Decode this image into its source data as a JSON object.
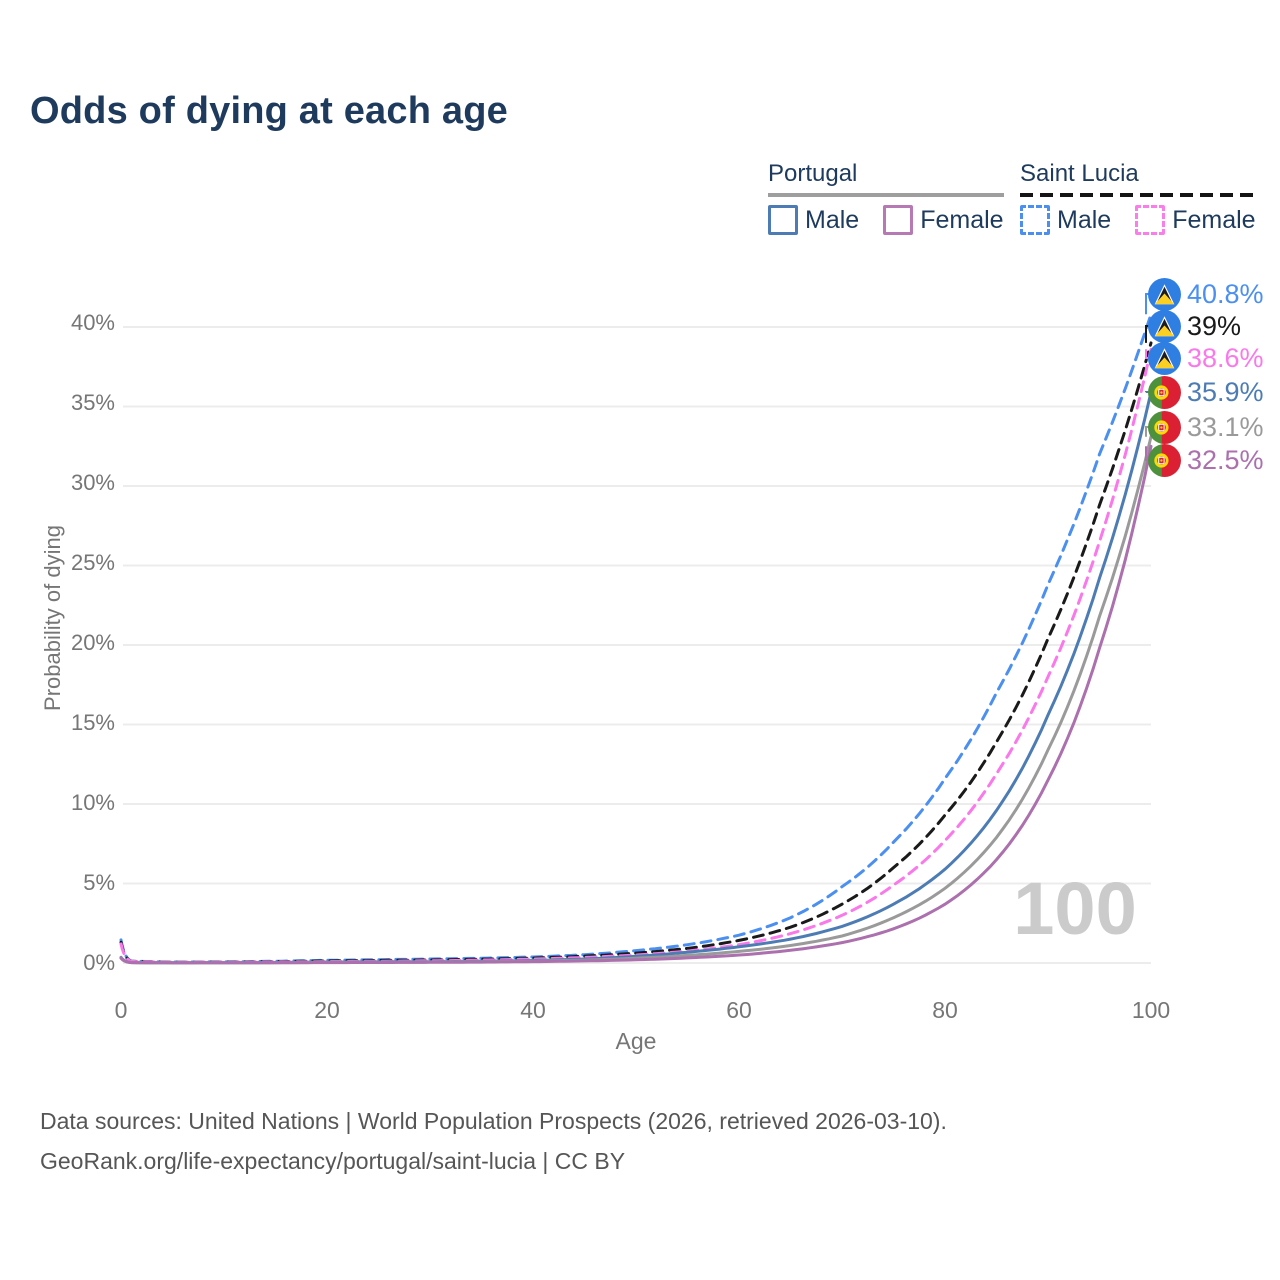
{
  "title": "Odds of dying at each age",
  "legend": {
    "portugal": {
      "label": "Portugal",
      "male": "Male",
      "female": "Female"
    },
    "saint_lucia": {
      "label": "Saint Lucia",
      "male": "Male",
      "female": "Female"
    }
  },
  "chart_data": {
    "type": "line",
    "title": "Odds of dying at each age",
    "xlabel": "Age",
    "ylabel": "Probability of dying",
    "x_ticks": [
      "0",
      "20",
      "40",
      "60",
      "80",
      "100"
    ],
    "x_tick_values": [
      0,
      20,
      40,
      60,
      80,
      100
    ],
    "y_ticks": [
      "0%",
      "5%",
      "10%",
      "15%",
      "20%",
      "25%",
      "30%",
      "35%",
      "40%"
    ],
    "y_tick_values_pct": [
      0,
      5,
      10,
      15,
      20,
      25,
      30,
      35,
      40
    ],
    "xlim": [
      0,
      100
    ],
    "ylim_pct": [
      0,
      42
    ],
    "grid": "horizontal",
    "legend_position": "top-right",
    "watermark": "100",
    "series": [
      {
        "name": "Saint Lucia Male",
        "country": "Saint Lucia",
        "sex": "Male",
        "color": "#4b8ff0",
        "dash": "dashed",
        "end_label": "40.8%",
        "flag": "saint-lucia",
        "points": [
          [
            0,
            1.45
          ],
          [
            1,
            0.12
          ],
          [
            5,
            0.06
          ],
          [
            10,
            0.07
          ],
          [
            15,
            0.11
          ],
          [
            20,
            0.17
          ],
          [
            25,
            0.21
          ],
          [
            30,
            0.25
          ],
          [
            35,
            0.3
          ],
          [
            40,
            0.38
          ],
          [
            45,
            0.52
          ],
          [
            50,
            0.78
          ],
          [
            55,
            1.15
          ],
          [
            60,
            1.75
          ],
          [
            65,
            2.85
          ],
          [
            70,
            4.8
          ],
          [
            75,
            7.6
          ],
          [
            80,
            11.6
          ],
          [
            85,
            17.0
          ],
          [
            90,
            23.8
          ],
          [
            95,
            32.0
          ],
          [
            100,
            40.8
          ]
        ]
      },
      {
        "name": "Saint Lucia Total",
        "country": "Saint Lucia",
        "sex": "Both",
        "color": "#1a1a1a",
        "dash": "dashed",
        "end_label": "39%",
        "flag": "saint-lucia",
        "points": [
          [
            0,
            1.3
          ],
          [
            1,
            0.11
          ],
          [
            5,
            0.05
          ],
          [
            10,
            0.055
          ],
          [
            15,
            0.085
          ],
          [
            20,
            0.13
          ],
          [
            25,
            0.16
          ],
          [
            30,
            0.19
          ],
          [
            35,
            0.24
          ],
          [
            40,
            0.31
          ],
          [
            45,
            0.43
          ],
          [
            50,
            0.62
          ],
          [
            55,
            0.92
          ],
          [
            60,
            1.42
          ],
          [
            65,
            2.25
          ],
          [
            70,
            3.7
          ],
          [
            75,
            6.0
          ],
          [
            80,
            9.3
          ],
          [
            85,
            13.9
          ],
          [
            90,
            20.4
          ],
          [
            95,
            28.8
          ],
          [
            100,
            39.0
          ]
        ]
      },
      {
        "name": "Saint Lucia Female",
        "country": "Saint Lucia",
        "sex": "Female",
        "color": "#fa78ea",
        "dash": "dashed",
        "end_label": "38.6%",
        "flag": "saint-lucia",
        "points": [
          [
            0,
            1.2
          ],
          [
            1,
            0.1
          ],
          [
            5,
            0.045
          ],
          [
            10,
            0.05
          ],
          [
            15,
            0.065
          ],
          [
            20,
            0.09
          ],
          [
            25,
            0.11
          ],
          [
            30,
            0.14
          ],
          [
            35,
            0.18
          ],
          [
            40,
            0.25
          ],
          [
            45,
            0.35
          ],
          [
            50,
            0.5
          ],
          [
            55,
            0.75
          ],
          [
            60,
            1.15
          ],
          [
            65,
            1.85
          ],
          [
            70,
            3.0
          ],
          [
            75,
            4.9
          ],
          [
            80,
            7.7
          ],
          [
            85,
            11.9
          ],
          [
            90,
            18.0
          ],
          [
            95,
            26.5
          ],
          [
            100,
            38.6
          ]
        ]
      },
      {
        "name": "Portugal Male",
        "country": "Portugal",
        "sex": "Male",
        "color": "#4d7cb5",
        "dash": "solid",
        "end_label": "35.9%",
        "flag": "portugal",
        "points": [
          [
            0,
            0.35
          ],
          [
            1,
            0.03
          ],
          [
            5,
            0.012
          ],
          [
            10,
            0.013
          ],
          [
            15,
            0.03
          ],
          [
            20,
            0.06
          ],
          [
            25,
            0.07
          ],
          [
            30,
            0.08
          ],
          [
            35,
            0.11
          ],
          [
            40,
            0.16
          ],
          [
            45,
            0.25
          ],
          [
            50,
            0.42
          ],
          [
            55,
            0.68
          ],
          [
            60,
            1.02
          ],
          [
            65,
            1.5
          ],
          [
            70,
            2.3
          ],
          [
            75,
            3.7
          ],
          [
            80,
            5.9
          ],
          [
            85,
            9.6
          ],
          [
            90,
            15.6
          ],
          [
            95,
            24.2
          ],
          [
            100,
            35.9
          ]
        ]
      },
      {
        "name": "Portugal Total",
        "country": "Portugal",
        "sex": "Both",
        "color": "#9a9a9a",
        "dash": "solid",
        "end_label": "33.1%",
        "flag": "portugal",
        "points": [
          [
            0,
            0.32
          ],
          [
            1,
            0.027
          ],
          [
            5,
            0.01
          ],
          [
            10,
            0.011
          ],
          [
            15,
            0.022
          ],
          [
            20,
            0.042
          ],
          [
            25,
            0.05
          ],
          [
            30,
            0.06
          ],
          [
            35,
            0.082
          ],
          [
            40,
            0.12
          ],
          [
            45,
            0.185
          ],
          [
            50,
            0.3
          ],
          [
            55,
            0.48
          ],
          [
            60,
            0.73
          ],
          [
            65,
            1.1
          ],
          [
            70,
            1.7
          ],
          [
            75,
            2.85
          ],
          [
            80,
            4.7
          ],
          [
            85,
            7.9
          ],
          [
            90,
            13.4
          ],
          [
            95,
            21.8
          ],
          [
            100,
            33.1
          ]
        ]
      },
      {
        "name": "Portugal Female",
        "country": "Portugal",
        "sex": "Female",
        "color": "#ab70ad",
        "dash": "solid",
        "end_label": "32.5%",
        "flag": "portugal",
        "points": [
          [
            0,
            0.3
          ],
          [
            1,
            0.024
          ],
          [
            5,
            0.009
          ],
          [
            10,
            0.01
          ],
          [
            15,
            0.016
          ],
          [
            20,
            0.026
          ],
          [
            25,
            0.032
          ],
          [
            30,
            0.042
          ],
          [
            35,
            0.058
          ],
          [
            40,
            0.085
          ],
          [
            45,
            0.13
          ],
          [
            50,
            0.2
          ],
          [
            55,
            0.32
          ],
          [
            60,
            0.5
          ],
          [
            65,
            0.8
          ],
          [
            70,
            1.28
          ],
          [
            75,
            2.15
          ],
          [
            80,
            3.7
          ],
          [
            85,
            6.5
          ],
          [
            90,
            11.5
          ],
          [
            95,
            19.8
          ],
          [
            100,
            32.5
          ]
        ]
      }
    ]
  },
  "colors": {
    "title": "#1e3a5c",
    "axis_text": "#767676",
    "gridline": "#ececec",
    "watermark": "#cbcbcb",
    "portugal_swatch_male": "#4d7cb5",
    "portugal_swatch_female": "#b779b3",
    "saint_lucia_swatch_male": "#4b8ff0",
    "saint_lucia_swatch_female": "#fb7deb"
  },
  "flags": {
    "saint_lucia": {
      "field": "#2f7fe3",
      "triangle_white": "#ffffff",
      "triangle_black": "#1b1b24",
      "triangle_yellow": "#fcd022"
    },
    "portugal": {
      "green": "#4e913d",
      "red": "#da2032",
      "emblem_yellow": "#ffd900",
      "emblem_white": "#ffffff"
    }
  },
  "footer": {
    "line1": "Data sources: United Nations | World Population Prospects (2026, retrieved 2026-03-10).",
    "line2": "GeoRank.org/life-expectancy/portugal/saint-lucia | CC BY"
  }
}
